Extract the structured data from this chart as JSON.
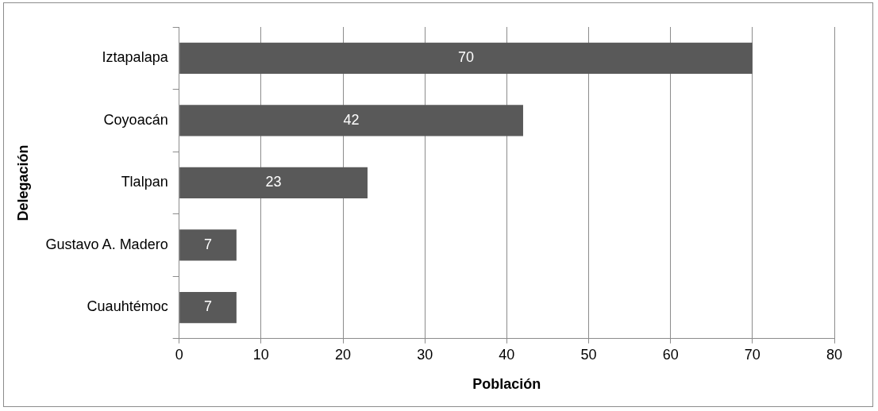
{
  "chart_data": {
    "type": "bar",
    "orientation": "horizontal",
    "xlabel": "Población",
    "ylabel": "Delegación",
    "categories": [
      "Iztapalapa",
      "Coyoacán",
      "Tlalpan",
      "Gustavo A. Madero",
      "Cuauhtémoc"
    ],
    "values": [
      70,
      42,
      23,
      7,
      7
    ],
    "color": "#595959",
    "xlim": [
      0,
      80
    ],
    "xticks": [
      0,
      10,
      20,
      30,
      40,
      50,
      60,
      70,
      80
    ],
    "grid": "x",
    "legend": false,
    "data_labels": true
  }
}
